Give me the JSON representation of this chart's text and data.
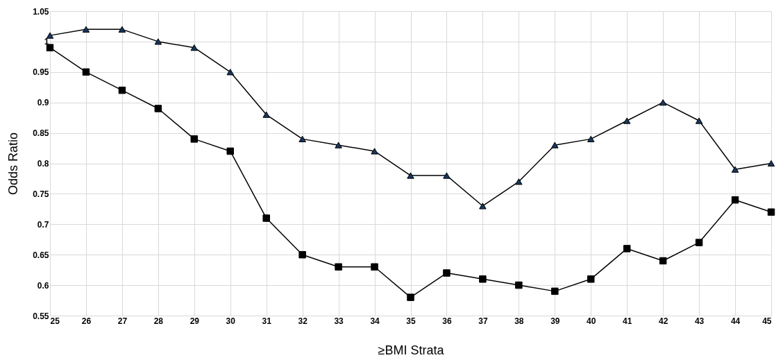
{
  "chart_data": {
    "type": "line",
    "xlabel": "≥BMI Strata",
    "ylabel": "Odds Ratio",
    "x": [
      25,
      26,
      27,
      28,
      29,
      30,
      31,
      32,
      33,
      34,
      35,
      36,
      37,
      38,
      39,
      40,
      41,
      42,
      43,
      44,
      45
    ],
    "series": [
      {
        "color": "#17365d",
        "marker": "triangle",
        "values": [
          1.01,
          1.02,
          1.02,
          1.0,
          0.99,
          0.95,
          0.88,
          0.84,
          0.83,
          0.82,
          0.78,
          0.78,
          0.73,
          0.77,
          0.83,
          0.84,
          0.87,
          0.9,
          0.87,
          0.79,
          0.8
        ]
      },
      {
        "color": "#000000",
        "marker": "square",
        "values": [
          0.99,
          0.95,
          0.92,
          0.89,
          0.84,
          0.82,
          0.71,
          0.65,
          0.63,
          0.63,
          0.58,
          0.62,
          0.61,
          0.6,
          0.59,
          0.61,
          0.66,
          0.64,
          0.67,
          0.74,
          0.72
        ]
      }
    ],
    "xlim": [
      25,
      45
    ],
    "xticks": [
      25,
      26,
      27,
      28,
      29,
      30,
      31,
      32,
      33,
      34,
      35,
      36,
      37,
      38,
      39,
      40,
      41,
      42,
      43,
      44,
      45
    ],
    "ylim": [
      0.55,
      1.05
    ],
    "yticks": [
      0.55,
      0.6,
      0.65,
      0.7,
      0.75,
      0.8,
      0.85,
      0.9,
      0.95,
      1,
      1.05
    ],
    "grid": true,
    "line_style": "solid"
  }
}
